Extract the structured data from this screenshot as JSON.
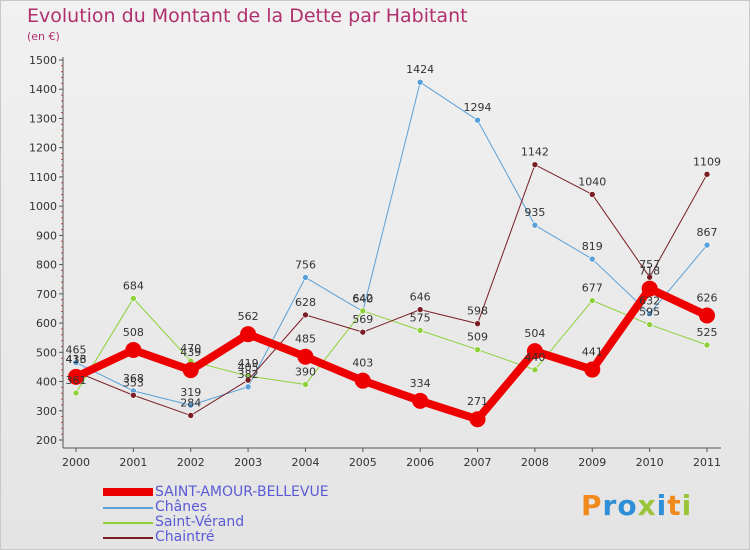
{
  "title": "Evolution du Montant de la Dette par Habitant",
  "subtitle": "(en €)",
  "logo": "Proxiti",
  "chart_data": {
    "type": "line",
    "x": [
      "2000",
      "2001",
      "2002",
      "2003",
      "2004",
      "2005",
      "2006",
      "2007",
      "2008",
      "2009",
      "2010",
      "2011"
    ],
    "ylim": [
      200,
      1500
    ],
    "yticks": [
      200,
      300,
      400,
      500,
      600,
      700,
      800,
      900,
      1000,
      1100,
      1200,
      1300,
      1400,
      1500
    ],
    "grid": false,
    "legend_position": "bottom-left",
    "series": [
      {
        "name": "SAINT-AMOUR-BELLEVUE",
        "color": "#ee0000",
        "width": 8,
        "marker": 8,
        "values": [
          416,
          508,
          439,
          562,
          485,
          403,
          334,
          271,
          504,
          441,
          718,
          626
        ],
        "labels": [
          "416",
          "508",
          "439",
          "562",
          "485",
          "403",
          "334",
          "271",
          "504",
          "441",
          "718",
          "626"
        ]
      },
      {
        "name": "Chânes",
        "color": "#5aa0d8",
        "width": 1,
        "marker": 3,
        "values": [
          465,
          368,
          319,
          382,
          756,
          640,
          1424,
          1294,
          935,
          819,
          632,
          867
        ],
        "labels": [
          "465",
          "368",
          "319",
          "382",
          "756",
          "640",
          "1424",
          "1294",
          "935",
          "819",
          "632",
          "867"
        ]
      },
      {
        "name": "Saint-Vérand",
        "color": "#8ed13a",
        "width": 1,
        "marker": 3,
        "values": [
          361,
          684,
          470,
          419,
          390,
          642,
          575,
          509,
          440,
          677,
          595,
          525
        ],
        "labels": [
          "361",
          "684",
          "470",
          "419",
          "390",
          "642",
          "575",
          "509",
          "440",
          "677",
          "595",
          "525"
        ]
      },
      {
        "name": "Chaintré",
        "color": "#7a1e25",
        "width": 1,
        "marker": 3,
        "values": [
          433,
          353,
          284,
          405,
          628,
          569,
          646,
          598,
          1142,
          1040,
          757,
          1109
        ],
        "labels": [
          "433",
          "353",
          "284",
          "405",
          "628",
          "569",
          "646",
          "598",
          "1142",
          "1040",
          "757",
          "1109"
        ]
      }
    ]
  }
}
